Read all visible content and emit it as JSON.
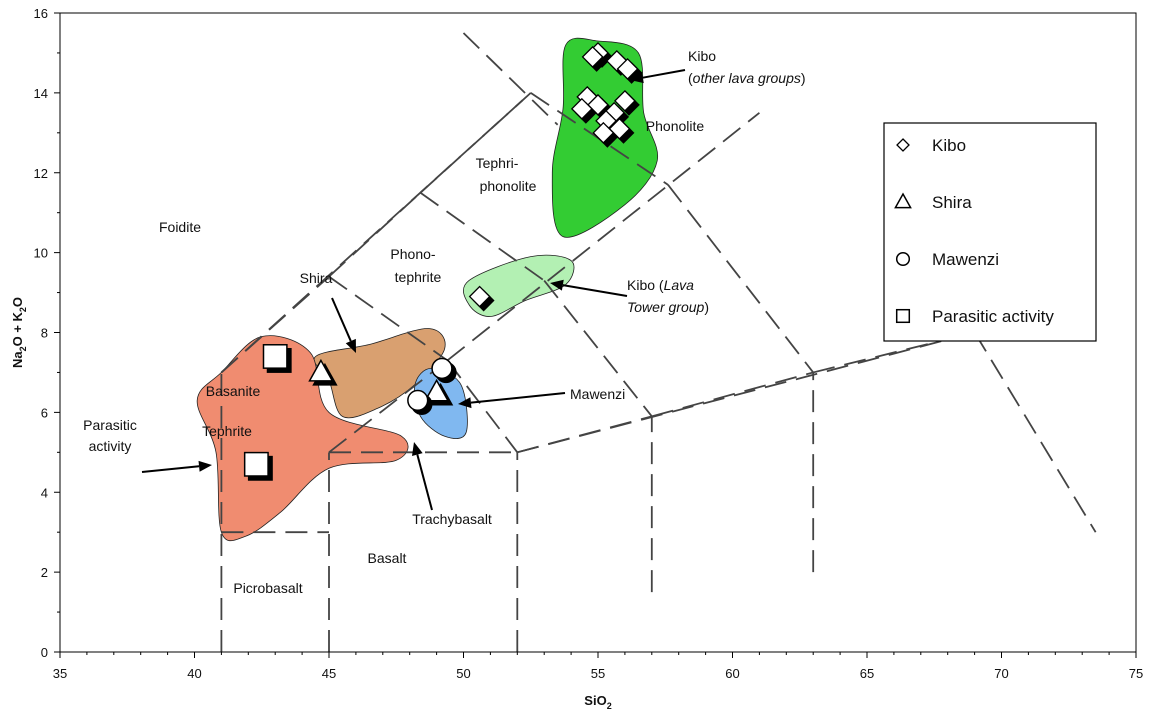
{
  "chart_data": {
    "type": "scatter",
    "xlabel": "SiO",
    "xlabel_sub": "2",
    "ylabel_parts": [
      "Na",
      "2",
      "O + K",
      "2",
      "O"
    ],
    "xlim": [
      35,
      75
    ],
    "ylim": [
      0,
      16
    ],
    "x_ticks": [
      "35",
      "40",
      "45",
      "50",
      "55",
      "60",
      "65",
      "70",
      "75"
    ],
    "y_ticks": [
      "0",
      "2",
      "4",
      "6",
      "8",
      "10",
      "12",
      "14",
      "16"
    ],
    "grid": false,
    "legend_position": "right",
    "field_labels": {
      "foidite": "Foidite",
      "tephri": "Tephri-",
      "phonolite_tephri": "phonolite",
      "phono": "Phono-",
      "tephrite_phono": "tephrite",
      "phonolite": "Phonolite",
      "basanite": "Basanite",
      "tephrite": "Tephrite",
      "picrobasalt": "Picrobasalt",
      "basalt": "Basalt"
    },
    "annotations": {
      "kibo_other_1": "Kibo",
      "kibo_other_2": "(",
      "kibo_other_2i": "other lava groups",
      "kibo_other_2e": ")",
      "kibo_lava_1a": "Kibo (",
      "kibo_lava_1i": "Lava",
      "kibo_lava_2i": "Tower group",
      "kibo_lava_2e": ")",
      "shira": "Shira",
      "mawenzi": "Mawenzi",
      "parasitic_1": "Parasitic",
      "parasitic_2": "activity",
      "trachybasalt": "Trachybasalt"
    },
    "legend": [
      {
        "marker": "diamond",
        "label": "Kibo"
      },
      {
        "marker": "triangle",
        "label": "Shira"
      },
      {
        "marker": "circle",
        "label": "Mawenzi"
      },
      {
        "marker": "square",
        "label": "Parasitic activity"
      }
    ],
    "colors": {
      "kibo_other": "#33cc33",
      "kibo_lava_tower": "#b3f0b3",
      "shira": "#d9a070",
      "mawenzi": "#80b8f0",
      "parasitic": "#f08c70",
      "boundary": "#444444"
    },
    "series": [
      {
        "name": "Kibo",
        "marker": "diamond",
        "points": [
          [
            55.0,
            15.0
          ],
          [
            55.7,
            14.8
          ],
          [
            56.1,
            14.6
          ],
          [
            54.8,
            14.9
          ],
          [
            54.6,
            13.9
          ],
          [
            55.0,
            13.7
          ],
          [
            56.0,
            13.8
          ],
          [
            55.6,
            13.5
          ],
          [
            55.3,
            13.3
          ],
          [
            55.8,
            13.1
          ],
          [
            55.2,
            13.0
          ],
          [
            54.4,
            13.6
          ],
          [
            50.6,
            8.9
          ]
        ]
      },
      {
        "name": "Shira",
        "marker": "triangle",
        "points": [
          [
            44.7,
            7.0
          ],
          [
            49.0,
            6.5
          ]
        ]
      },
      {
        "name": "Mawenzi",
        "marker": "circle",
        "points": [
          [
            49.2,
            7.1
          ],
          [
            48.3,
            6.3
          ]
        ]
      },
      {
        "name": "Parasitic activity",
        "marker": "square",
        "points": [
          [
            43.0,
            7.4
          ],
          [
            42.3,
            4.7
          ]
        ]
      }
    ]
  }
}
